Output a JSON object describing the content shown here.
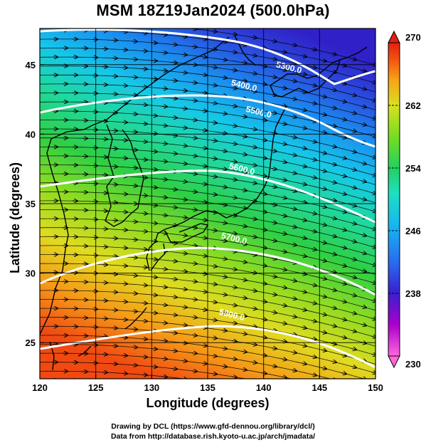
{
  "title": "MSM 18Z19Jan2024 (500.0hPa)",
  "map": {
    "xlabel": "Longitude (degrees)",
    "ylabel": "Latitude  (degrees)",
    "lon_range": [
      120,
      150
    ],
    "lat_range": [
      22.4,
      47.6
    ],
    "lon_ticks": [
      120,
      125,
      130,
      135,
      140,
      145,
      150
    ],
    "lat_ticks": [
      25,
      30,
      35,
      40,
      45
    ],
    "colorbar": {
      "range": [
        230,
        270
      ],
      "ticks": [
        230,
        238,
        246,
        254,
        262,
        270
      ],
      "colors": [
        "#ff66dd",
        "#aa00cc",
        "#3a1fd0",
        "#2a6cf0",
        "#16b8f0",
        "#1fe0c0",
        "#23d060",
        "#77dd22",
        "#d8e020",
        "#f7a418",
        "#f25010",
        "#e22010"
      ]
    },
    "contours": [
      {
        "value": "5300.0",
        "label_lon": 142.2,
        "label_lat": 44.6
      },
      {
        "value": "5400.0",
        "label_lon": 138.2,
        "label_lat": 43.3
      },
      {
        "value": "5500.0",
        "label_lon": 139.5,
        "label_lat": 41.4
      },
      {
        "value": "5600.0",
        "label_lon": 138.0,
        "label_lat": 37.3
      },
      {
        "value": "5700.0",
        "label_lon": 137.3,
        "label_lat": 32.3
      },
      {
        "value": "5800.0",
        "label_lon": 137.1,
        "label_lat": 26.8
      }
    ]
  },
  "credits": [
    "Drawing by DCL (https://www.gfd-dennou.org/library/dcl/)",
    "Data from http://database.rish.kyoto-u.ac.jp/arch/jmadata/"
  ]
}
